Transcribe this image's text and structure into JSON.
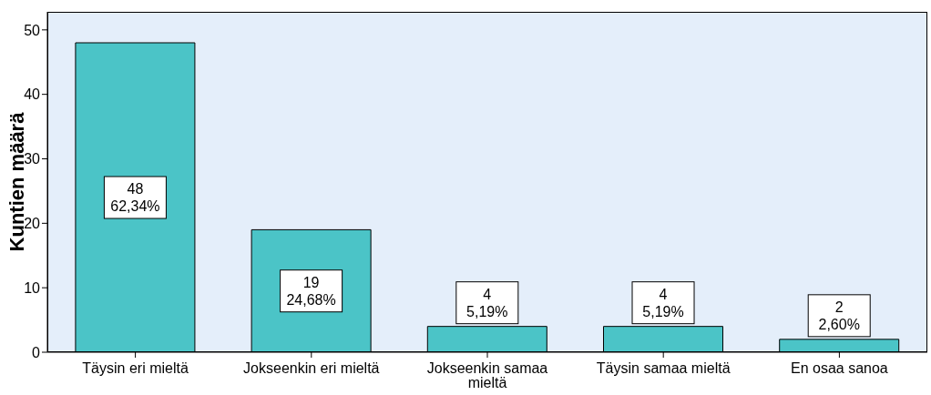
{
  "chart_data": {
    "type": "bar",
    "ylabel": "Kuntien määrä",
    "categories": [
      "Täysin eri mieltä",
      "Jokseenkin eri mieltä",
      "Jokseenkin samaa mieltä",
      "Täysin samaa mieltä",
      "En osaa sanoa"
    ],
    "values": [
      48,
      19,
      4,
      4,
      2
    ],
    "value_labels": [
      "48\n62,34%",
      "19\n24,68%",
      "4\n5,19%",
      "4\n5,19%",
      "2\n2,60%"
    ],
    "color": "#4bc4c7",
    "ylim": [
      0,
      52.8
    ],
    "yticks": [
      0,
      10,
      20,
      30,
      40,
      50
    ],
    "grid": false
  }
}
